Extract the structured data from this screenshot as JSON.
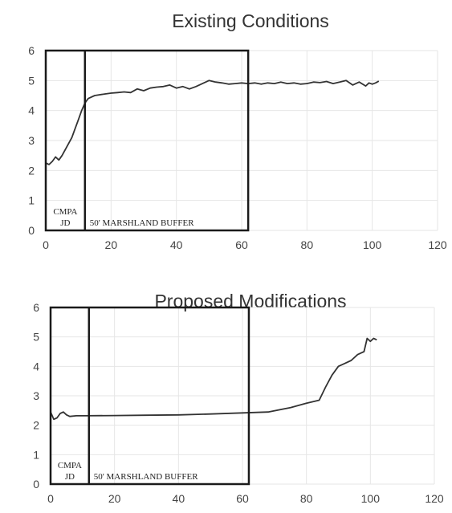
{
  "chart_data": [
    {
      "type": "line",
      "title": "Existing Conditions",
      "xlabel": "",
      "ylabel": "",
      "xlim": [
        0,
        120
      ],
      "ylim": [
        0,
        6
      ],
      "x_ticks": [
        "0",
        "20",
        "40",
        "60",
        "80",
        "100",
        "120"
      ],
      "y_ticks": [
        "0",
        "1",
        "2",
        "3",
        "4",
        "5",
        "6"
      ],
      "grid": true,
      "series": [
        {
          "x": [
            0,
            1,
            2,
            3,
            4,
            5,
            6,
            7,
            8,
            9,
            10,
            11,
            12,
            13,
            15,
            18,
            20,
            22,
            24,
            26,
            28,
            30,
            32,
            34,
            36,
            38,
            40,
            42,
            44,
            46,
            48,
            50,
            52,
            54,
            56,
            58,
            60,
            62,
            64,
            66,
            68,
            70,
            72,
            74,
            76,
            78,
            80,
            82,
            84,
            86,
            88,
            90,
            92,
            94,
            96,
            98,
            99,
            100,
            101,
            102
          ],
          "y": [
            2.25,
            2.2,
            2.3,
            2.45,
            2.35,
            2.5,
            2.7,
            2.9,
            3.1,
            3.4,
            3.7,
            4.0,
            4.25,
            4.4,
            4.5,
            4.55,
            4.58,
            4.6,
            4.62,
            4.6,
            4.72,
            4.66,
            4.75,
            4.78,
            4.8,
            4.85,
            4.75,
            4.8,
            4.72,
            4.8,
            4.9,
            5.0,
            4.95,
            4.92,
            4.88,
            4.9,
            4.92,
            4.9,
            4.92,
            4.88,
            4.92,
            4.9,
            4.95,
            4.9,
            4.92,
            4.88,
            4.9,
            4.95,
            4.93,
            4.97,
            4.9,
            4.95,
            5.0,
            4.85,
            4.95,
            4.82,
            4.92,
            4.88,
            4.92,
            4.98
          ]
        }
      ],
      "zones": [
        {
          "label_lines": [
            "CMPA",
            "JD"
          ],
          "x_start": 0,
          "x_end": 12
        },
        {
          "label_lines": [
            "50' MARSHLAND BUFFER"
          ],
          "x_start": 12,
          "x_end": 62
        }
      ]
    },
    {
      "type": "line",
      "title": "Proposed Modifications",
      "xlabel": "",
      "ylabel": "",
      "xlim": [
        0,
        120
      ],
      "ylim": [
        0,
        6
      ],
      "x_ticks": [
        "0",
        "20",
        "40",
        "60",
        "80",
        "100",
        "120"
      ],
      "y_ticks": [
        "0",
        "1",
        "2",
        "3",
        "4",
        "5",
        "6"
      ],
      "grid": true,
      "series": [
        {
          "x": [
            0,
            1,
            2,
            3,
            4,
            5,
            6,
            8,
            10,
            20,
            30,
            40,
            50,
            60,
            68,
            75,
            80,
            84,
            86,
            88,
            90,
            92,
            94,
            96,
            97,
            98,
            99,
            100,
            101,
            102
          ],
          "y": [
            2.45,
            2.2,
            2.25,
            2.4,
            2.45,
            2.35,
            2.3,
            2.32,
            2.32,
            2.33,
            2.34,
            2.35,
            2.38,
            2.42,
            2.45,
            2.6,
            2.75,
            2.85,
            3.3,
            3.7,
            4.0,
            4.1,
            4.2,
            4.4,
            4.45,
            4.5,
            4.95,
            4.85,
            4.95,
            4.9
          ]
        }
      ],
      "zones": [
        {
          "label_lines": [
            "CMPA",
            "JD"
          ],
          "x_start": 0,
          "x_end": 12
        },
        {
          "label_lines": [
            "50' MARSHLAND BUFFER"
          ],
          "x_start": 12,
          "x_end": 62
        }
      ]
    }
  ]
}
